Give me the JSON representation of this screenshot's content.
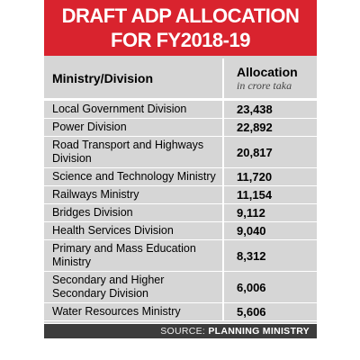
{
  "header": {
    "title_lines": [
      "DRAFT ADP ALLOCATION",
      "FOR FY2018-19"
    ]
  },
  "table": {
    "columns": [
      "Ministry/Division",
      "Allocation"
    ],
    "unit": "in crore taka",
    "rows": [
      [
        "Local Government Division",
        "23,438"
      ],
      [
        "Power Division",
        "22,892"
      ],
      [
        "Road Transport and Highways Division",
        "20,817"
      ],
      [
        "Science and Technology Ministry",
        "11,720"
      ],
      [
        "Railways Ministry",
        "11,154"
      ],
      [
        "Bridges Division",
        "9,112"
      ],
      [
        "Health Services Division",
        "9,040"
      ],
      [
        "Primary and Mass Education Ministry",
        "8,312"
      ],
      [
        "Secondary and Higher Secondary Division",
        "6,006"
      ],
      [
        "Water Resources Ministry",
        "5,606"
      ]
    ]
  },
  "source": {
    "label": "SOURCE:",
    "name": "PLANNING MINISTRY"
  }
}
